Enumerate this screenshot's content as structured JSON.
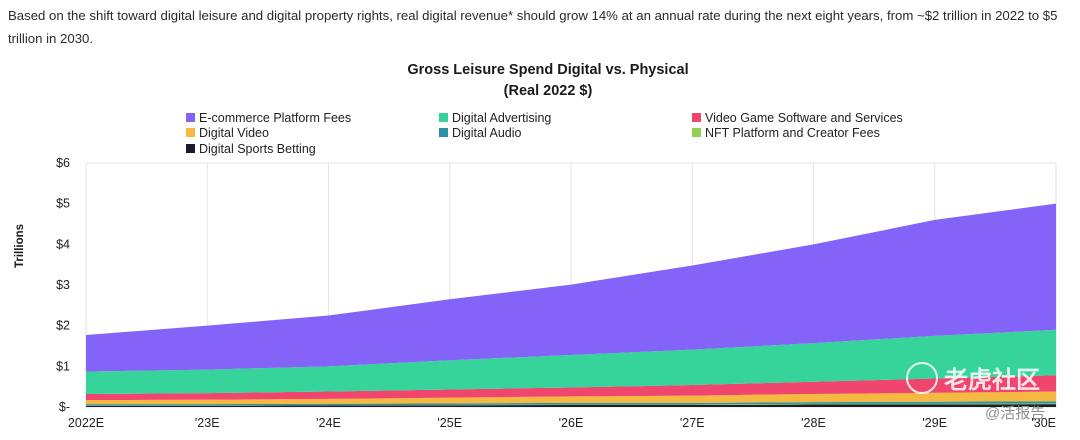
{
  "intro_text": "Based on the shift toward digital leisure and digital property rights, real digital revenue* should grow 14% at an annual rate during the next eight years, from ~$2 trillion in 2022 to $5 trillion in 2030.",
  "chart_data": {
    "type": "area",
    "stacked": true,
    "title": "Gross Leisure Spend Digital vs. Physical",
    "subtitle": "(Real 2022 $)",
    "ylabel": "Trillions",
    "xlabel": "",
    "ylim": [
      0,
      6
    ],
    "y_tick_values": [
      0,
      1,
      2,
      3,
      4,
      5,
      6
    ],
    "y_tick_labels": [
      "$-",
      "$1",
      "$2",
      "$3",
      "$4",
      "$5",
      "$6"
    ],
    "categories": [
      "2022E",
      "'23E",
      "'24E",
      "'25E",
      "'26E",
      "'27E",
      "'28E",
      "'29E",
      "'30E"
    ],
    "grid": "vertical",
    "legend_position": "top",
    "series": [
      {
        "name": "Digital Sports Betting",
        "color": "#1b1b2b",
        "values": [
          0.03,
          0.03,
          0.04,
          0.04,
          0.05,
          0.05,
          0.06,
          0.06,
          0.07
        ]
      },
      {
        "name": "NFT Platform and Creator Fees",
        "color": "#8fd14f",
        "values": [
          0.01,
          0.01,
          0.01,
          0.01,
          0.01,
          0.01,
          0.02,
          0.02,
          0.02
        ]
      },
      {
        "name": "Digital Audio",
        "color": "#2b8fa6",
        "values": [
          0.03,
          0.03,
          0.03,
          0.04,
          0.04,
          0.04,
          0.04,
          0.05,
          0.05
        ]
      },
      {
        "name": "Digital Video",
        "color": "#f5b840",
        "values": [
          0.1,
          0.11,
          0.12,
          0.14,
          0.16,
          0.18,
          0.2,
          0.22,
          0.24
        ]
      },
      {
        "name": "Video Game Software and Services",
        "color": "#f0466e",
        "values": [
          0.15,
          0.16,
          0.18,
          0.2,
          0.22,
          0.26,
          0.3,
          0.35,
          0.4
        ]
      },
      {
        "name": "Digital Advertising",
        "color": "#36d39a",
        "values": [
          0.55,
          0.58,
          0.62,
          0.72,
          0.8,
          0.87,
          0.95,
          1.05,
          1.12
        ]
      },
      {
        "name": "E-commerce Platform Fees",
        "color": "#8464f8",
        "values": [
          0.9,
          1.08,
          1.25,
          1.5,
          1.73,
          2.07,
          2.43,
          2.85,
          3.1
        ]
      }
    ],
    "legend": [
      {
        "label": "E-commerce Platform Fees",
        "color": "#8464f8"
      },
      {
        "label": "Digital Advertising",
        "color": "#36d39a"
      },
      {
        "label": "Video Game Software and Services",
        "color": "#f0466e"
      },
      {
        "label": "Digital Video",
        "color": "#f5b840"
      },
      {
        "label": "Digital Audio",
        "color": "#2b8fa6"
      },
      {
        "label": "NFT Platform and Creator Fees",
        "color": "#8fd14f"
      },
      {
        "label": "Digital Sports Betting",
        "color": "#1b1b2b"
      }
    ]
  },
  "watermark": {
    "main": "老虎社区",
    "sub": "@活报告"
  }
}
